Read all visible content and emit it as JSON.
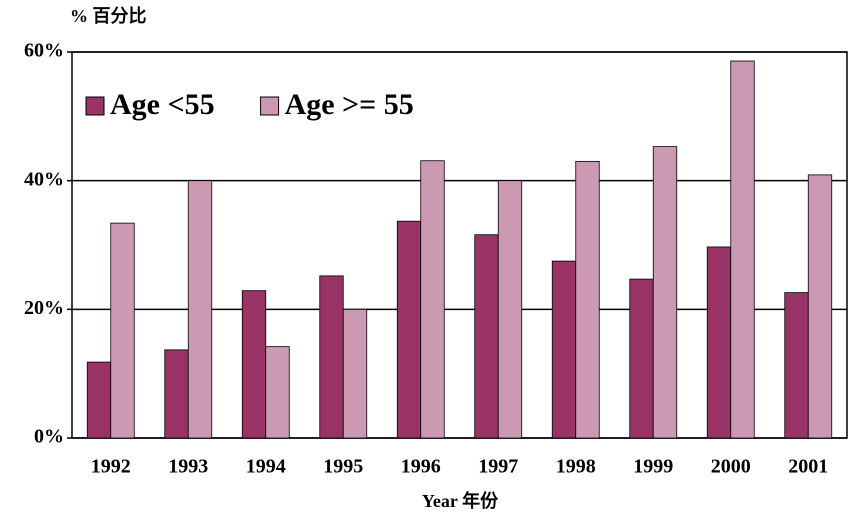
{
  "chart_data": {
    "type": "bar",
    "y_axis_label": "% 百分比",
    "x_axis_label": "Year 年份",
    "categories": [
      "1992",
      "1993",
      "1994",
      "1995",
      "1996",
      "1997",
      "1998",
      "1999",
      "2000",
      "2001"
    ],
    "series": [
      {
        "name": "Age <55",
        "color": "#993366",
        "values": [
          11.8,
          13.7,
          22.9,
          25.2,
          33.7,
          31.6,
          27.5,
          24.7,
          29.7,
          22.6
        ]
      },
      {
        "name": "Age >= 55",
        "color": "#cc99b3",
        "values": [
          33.4,
          40,
          14.2,
          20,
          43.1,
          40,
          43,
          45.3,
          58.6,
          40.9
        ]
      }
    ],
    "ylim": [
      0,
      60
    ],
    "yticks": [
      {
        "value": 0,
        "label": "0%"
      },
      {
        "value": 20,
        "label": "20%"
      },
      {
        "value": 40,
        "label": "40%"
      },
      {
        "value": 60,
        "label": "60%"
      }
    ],
    "grid": true,
    "legend": "top-left"
  }
}
